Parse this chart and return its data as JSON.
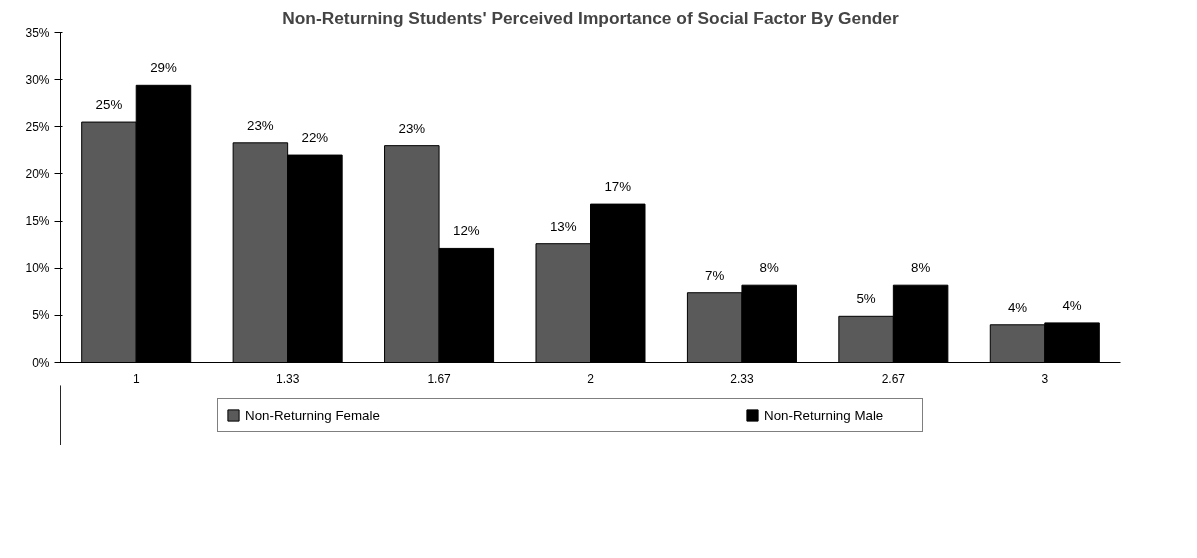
{
  "chart_data": {
    "type": "bar",
    "title": "Non-Returning Students' Perceived Importance of Social Factor By Gender",
    "categories": [
      "1",
      "1.33",
      "1.67",
      "2",
      "2.33",
      "2.67",
      "3"
    ],
    "series": [
      {
        "name": "Non-Returning Female",
        "color": "#5a5a5a",
        "values": [
          25.5,
          23.3,
          23.0,
          12.6,
          7.4,
          4.9,
          4.0
        ],
        "value_labels": [
          "25%",
          "23%",
          "23%",
          "13%",
          "7%",
          "5%",
          "4%"
        ]
      },
      {
        "name": "Non-Returning Male",
        "color": "#000000",
        "values": [
          29.4,
          22.0,
          12.1,
          16.8,
          8.2,
          8.2,
          4.2
        ],
        "value_labels": [
          "29%",
          "22%",
          "12%",
          "17%",
          "8%",
          "8%",
          "4%"
        ]
      }
    ],
    "ylim": [
      0,
      35
    ],
    "yticks": [
      {
        "value": 0,
        "label": "0%"
      },
      {
        "value": 5,
        "label": "5%"
      },
      {
        "value": 10,
        "label": "10%"
      },
      {
        "value": 15,
        "label": "15%"
      },
      {
        "value": 20,
        "label": "20%"
      },
      {
        "value": 25,
        "label": "25%"
      },
      {
        "value": 30,
        "label": "30%"
      },
      {
        "value": 35,
        "label": "35%"
      }
    ],
    "grid": false,
    "legend": "bottom"
  }
}
